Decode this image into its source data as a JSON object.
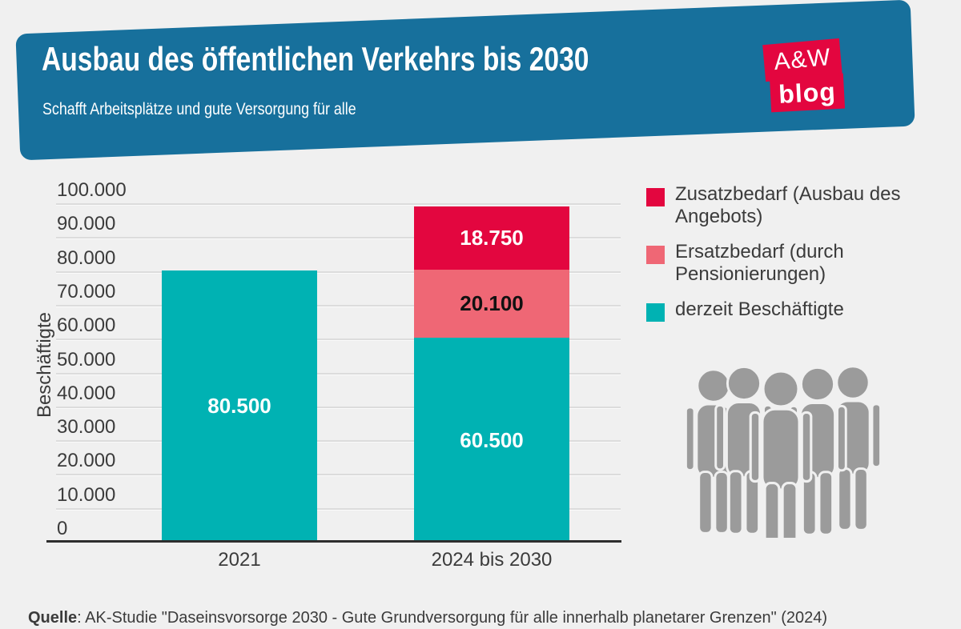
{
  "header": {
    "title": "Ausbau des öffentlichen Verkehrs bis 2030",
    "subtitle": "Schafft Arbeitsplätze und gute Versorgung für alle",
    "logo": {
      "line1": "A&W",
      "line2": "blog"
    }
  },
  "colors": {
    "banner_blue": "#17709c",
    "accent_red": "#e3063f",
    "accent_pink": "#ef6775",
    "accent_teal": "#00b2b3",
    "background": "#f0f0f0",
    "icon_gray": "#9b9b9b"
  },
  "chart_data": {
    "type": "bar",
    "stacked": true,
    "categories": [
      "2021",
      "2024 bis 2030"
    ],
    "series": [
      {
        "name": "derzeit Beschäftigte",
        "color": "#00b2b3",
        "values": [
          80500,
          60500
        ],
        "data_labels": [
          "80.500",
          "60.500"
        ],
        "label_color": "#ffffff"
      },
      {
        "name": "Ersatzbedarf (durch Pensionierungen)",
        "color": "#ef6775",
        "values": [
          0,
          20100
        ],
        "data_labels": [
          "",
          "20.100"
        ],
        "label_color": "#111111"
      },
      {
        "name": "Zusatzbedarf (Ausbau des Angebots)",
        "color": "#e3063f",
        "values": [
          0,
          18750
        ],
        "data_labels": [
          "",
          "18.750"
        ],
        "label_color": "#ffffff"
      }
    ],
    "xlabel": "",
    "ylabel": "Beschäftigte",
    "ylim": [
      0,
      100000
    ],
    "grid": true,
    "legend_position": "right",
    "yticks": [
      {
        "value": 0,
        "label": "0"
      },
      {
        "value": 10000,
        "label": "10.000"
      },
      {
        "value": 20000,
        "label": "20.000"
      },
      {
        "value": 30000,
        "label": "30.000"
      },
      {
        "value": 40000,
        "label": "40.000"
      },
      {
        "value": 50000,
        "label": "50.000"
      },
      {
        "value": 60000,
        "label": "60.000"
      },
      {
        "value": 70000,
        "label": "70.000"
      },
      {
        "value": 80000,
        "label": "80.000"
      },
      {
        "value": 90000,
        "label": "90.000"
      },
      {
        "value": 100000,
        "label": "100.000"
      }
    ],
    "legend": [
      {
        "label": "Zusatzbedarf (Ausbau des Angebots)",
        "color": "#e3063f"
      },
      {
        "label": "Ersatzbedarf (durch Pensionierungen)",
        "color": "#ef6775"
      },
      {
        "label": "derzeit Beschäftigte",
        "color": "#00b2b3"
      }
    ]
  },
  "source": {
    "label": "Quelle",
    "text": ": AK-Studie \"Daseinsvorsorge 2030 - Gute Grundversorgung für alle innerhalb planetarer Grenzen\" (2024)"
  }
}
